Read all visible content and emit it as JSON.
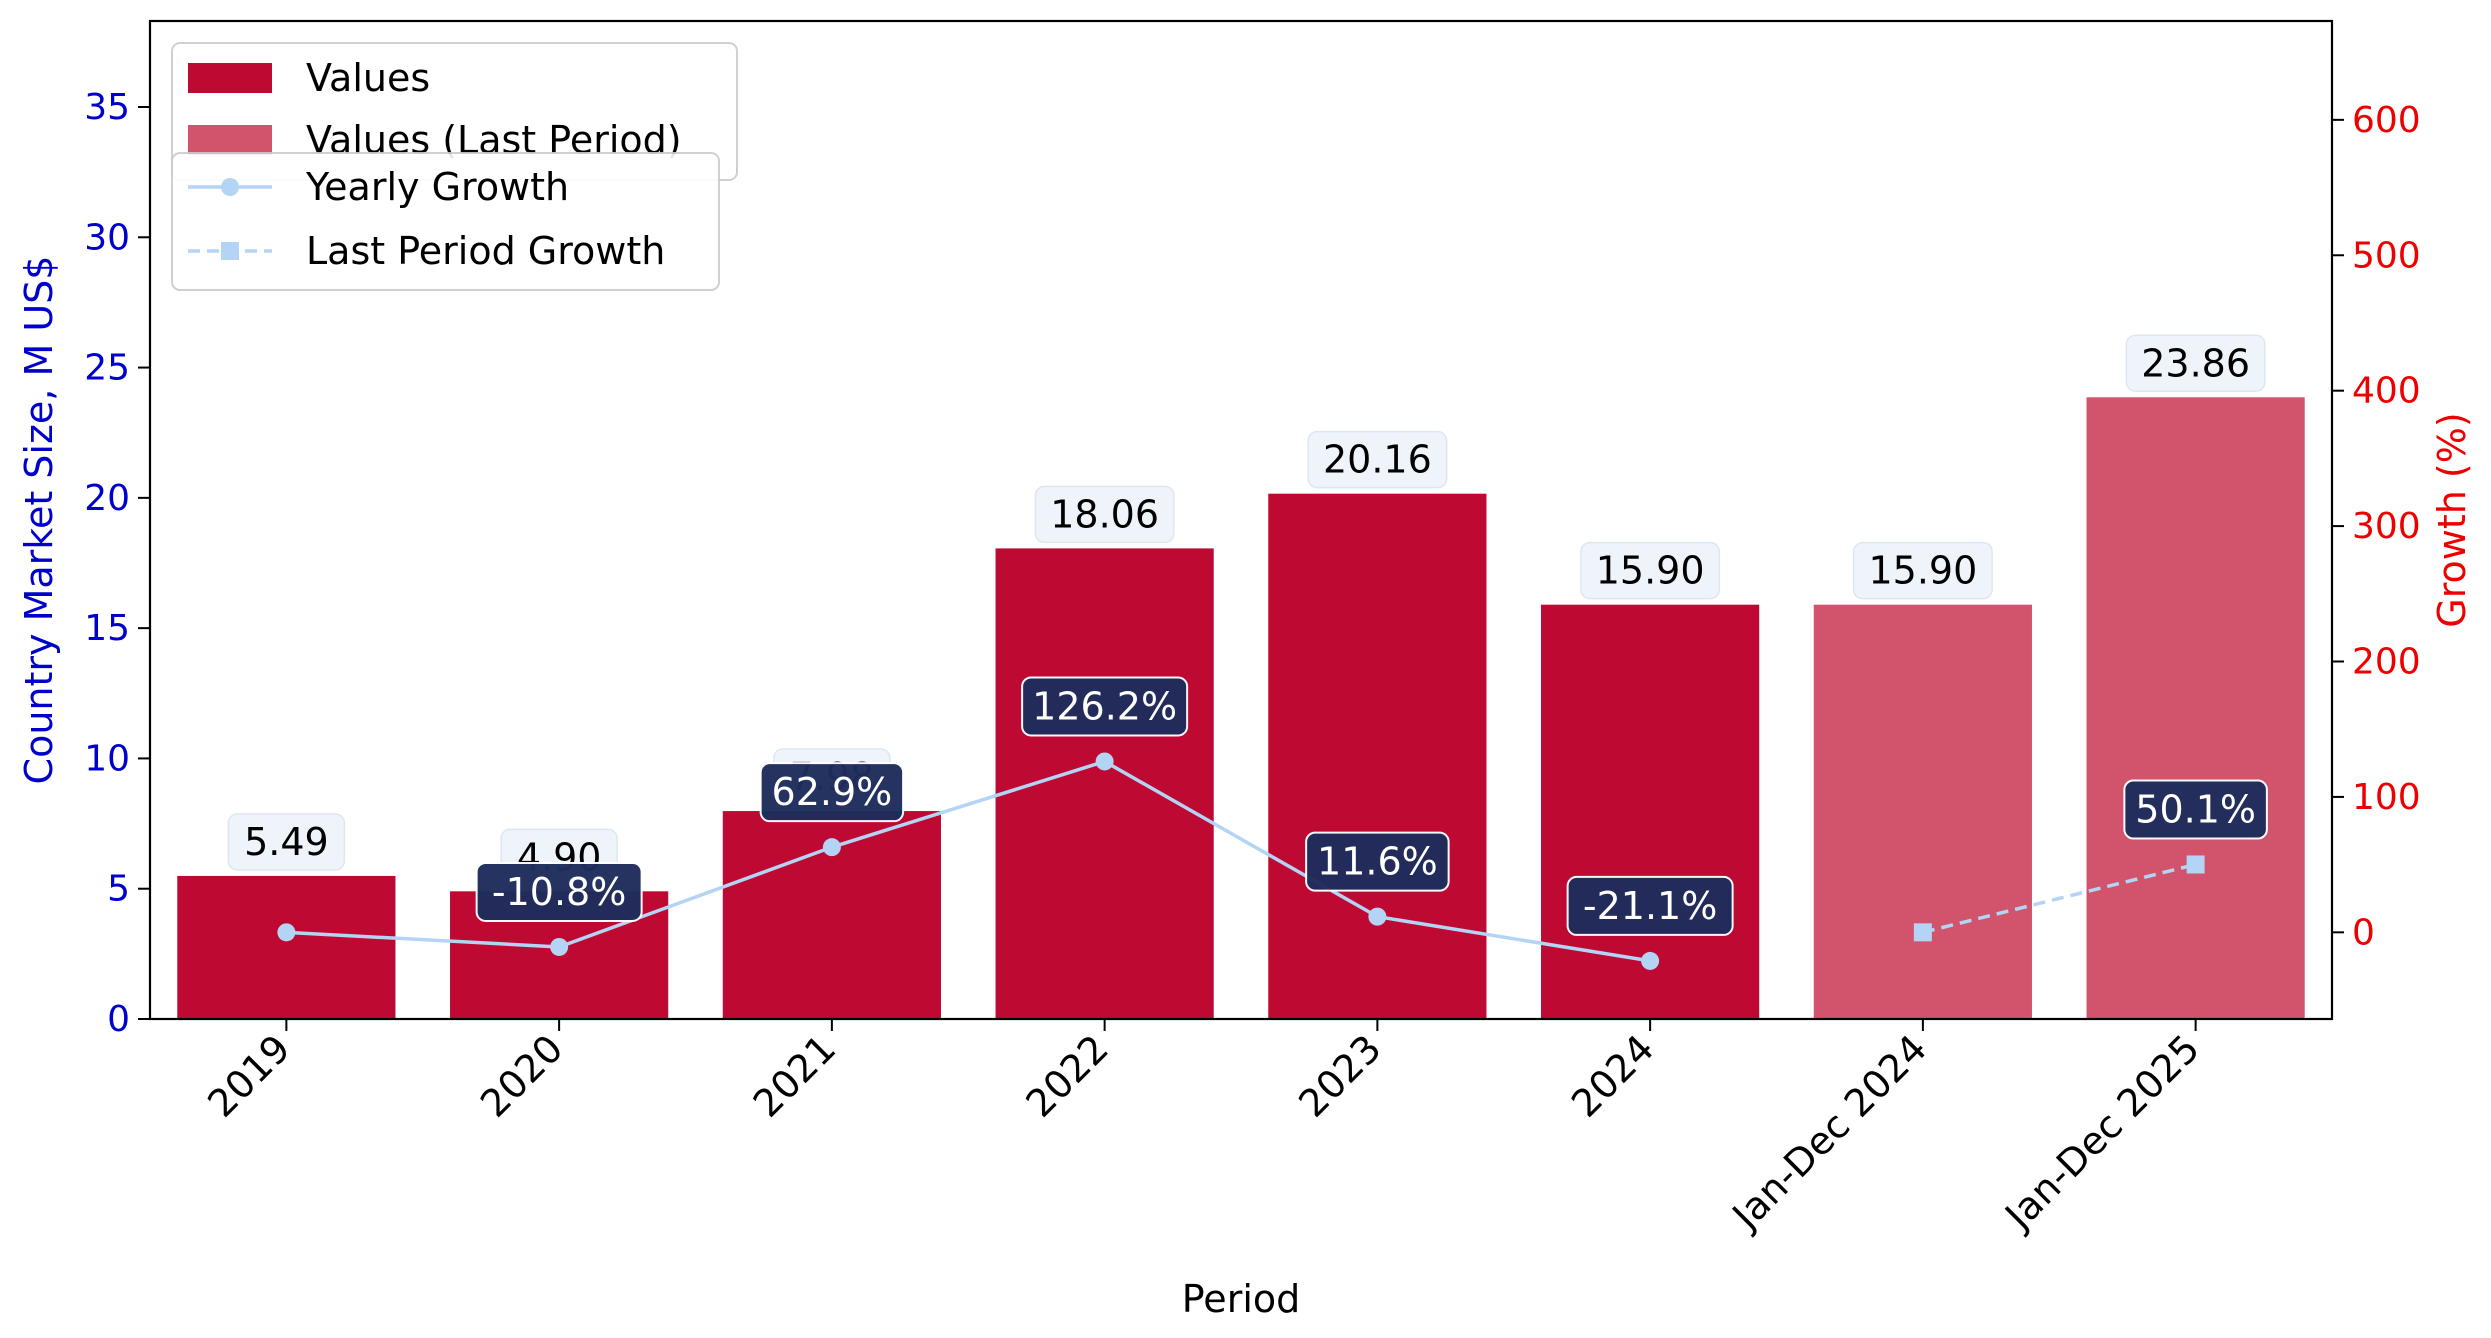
{
  "chart_data": {
    "type": "bar",
    "xlabel": "Period",
    "ylabel_left": "Country Market Size, M US$",
    "ylabel_right": "Growth (%)",
    "categories": [
      "2019",
      "2020",
      "2021",
      "2022",
      "2023",
      "2024",
      "Jan-Dec 2024",
      "Jan-Dec 2025"
    ],
    "bar_values": [
      5.49,
      4.9,
      7.98,
      18.06,
      20.16,
      15.9,
      15.9,
      23.86
    ],
    "bar_labels": [
      "5.49",
      "4.90",
      "7.98",
      "18.06",
      "20.16",
      "15.90",
      "15.90",
      "23.86"
    ],
    "bar_series": [
      "Values",
      "Values",
      "Values",
      "Values",
      "Values",
      "Values",
      "Values (Last Period)",
      "Values (Last Period)"
    ],
    "yearly_growth": {
      "name": "Yearly Growth",
      "categories": [
        "2019",
        "2020",
        "2021",
        "2022",
        "2023",
        "2024"
      ],
      "values": [
        0,
        -10.8,
        62.9,
        126.2,
        11.6,
        -21.1
      ],
      "labels": [
        "",
        "-10.8%",
        "62.9%",
        "126.2%",
        "11.6%",
        "-21.1%"
      ]
    },
    "last_period_growth": {
      "name": "Last Period Growth",
      "categories": [
        "Jan-Dec 2024",
        "Jan-Dec 2025"
      ],
      "values": [
        0,
        50.1
      ],
      "labels": [
        "",
        "50.1%"
      ]
    },
    "legend": [
      "Values",
      "Values (Last Period)",
      "Yearly Growth",
      "Last Period Growth"
    ],
    "legend_position": "top-left",
    "ylim_left": [
      0,
      38.3
    ],
    "yticks_left": [
      0,
      5,
      10,
      15,
      20,
      25,
      30,
      35
    ],
    "ylim_right": [
      -64,
      673
    ],
    "yticks_right": [
      0,
      100,
      200,
      300,
      400,
      500,
      600
    ],
    "grid": false,
    "colors": {
      "values": "#BE0A32",
      "values_last": "#D1546C",
      "growth_line": "#B3D4F5",
      "growth_label_bg": "#1F2D5C",
      "value_label_bg": "#EEF4FA",
      "left_axis": "#0000CC",
      "right_axis": "#EE0000"
    }
  }
}
